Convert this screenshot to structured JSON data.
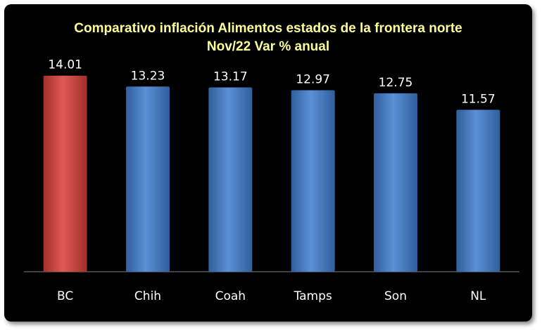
{
  "chart_data": {
    "type": "bar",
    "title": "Comparativo inflación Alimentos estados de la frontera norte",
    "subtitle": "Nov/22 Var % anual",
    "categories": [
      "BC",
      "Chih",
      "Coah",
      "Tamps",
      "Son",
      "NL"
    ],
    "values": [
      14.01,
      13.23,
      13.17,
      12.97,
      12.75,
      11.57
    ],
    "value_labels": [
      "14.01",
      "13.23",
      "13.17",
      "12.97",
      "12.75",
      "11.57"
    ],
    "ylim": [
      0,
      14.8
    ],
    "grid": false,
    "legend": "none",
    "colors": {
      "highlight": "#c0504d",
      "default": "#4f81bd",
      "title": "#ffff99",
      "background": "#000000",
      "text": "#ffffff"
    }
  }
}
